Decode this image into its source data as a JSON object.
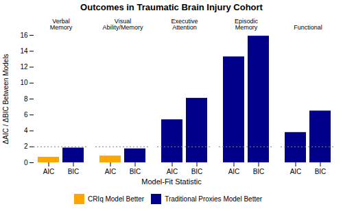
{
  "chart_data": {
    "type": "bar",
    "title": "Outcomes in Traumatic Brain Injury Cohort",
    "ylabel": "ΔAIC / ΔBIC Between Models",
    "xlabel": "Model-Fit Statistic",
    "groups": [
      {
        "name": "Verbal Memory",
        "categories": [
          "AIC",
          "BIC"
        ],
        "values": [
          0.7,
          1.85
        ],
        "colors": [
          "#FFA500",
          "#00008B"
        ]
      },
      {
        "name": "Visual Ability/Memory",
        "categories": [
          "AIC",
          "BIC"
        ],
        "values": [
          0.85,
          1.75
        ],
        "colors": [
          "#FFA500",
          "#00008B"
        ]
      },
      {
        "name": "Executive Attention",
        "categories": [
          "AIC",
          "BIC"
        ],
        "values": [
          5.4,
          8.1
        ],
        "colors": [
          "#00008B",
          "#00008B"
        ]
      },
      {
        "name": "Episodic Memory",
        "categories": [
          "AIC",
          "BIC"
        ],
        "values": [
          13.3,
          15.9
        ],
        "colors": [
          "#00008B",
          "#00008B"
        ]
      },
      {
        "name": "Functional",
        "categories": [
          "AIC",
          "BIC"
        ],
        "values": [
          3.8,
          6.5
        ],
        "colors": [
          "#00008B",
          "#00008B"
        ]
      }
    ],
    "reference_y": 2,
    "ylim": [
      0,
      16
    ],
    "yticks": [
      0,
      2,
      4,
      6,
      8,
      10,
      12,
      14,
      16
    ],
    "grid": false,
    "legend": "bottom",
    "legend_entries": [
      {
        "name": "CRIq Model Better",
        "color": "#FFA500"
      },
      {
        "name": "Traditional Proxies Model Better",
        "color": "#00008B"
      }
    ]
  }
}
